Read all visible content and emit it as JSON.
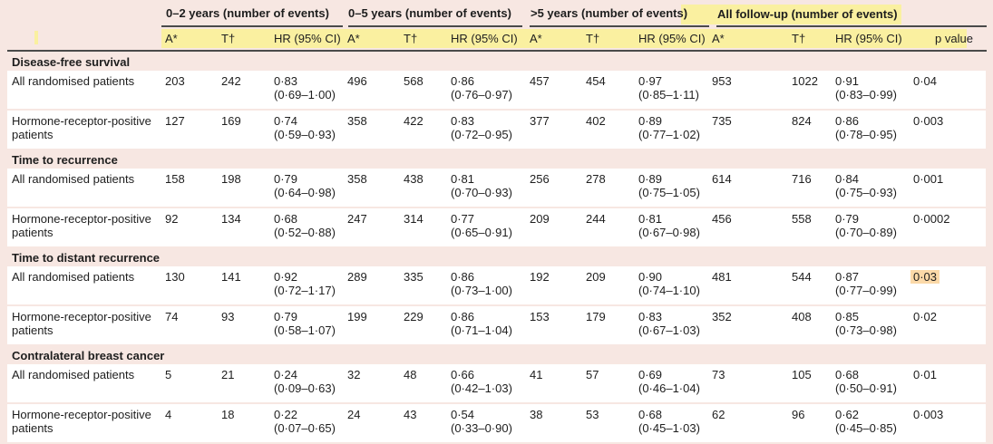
{
  "colors": {
    "page_bg": "#f7e7e2",
    "row_bg": "#ffffff",
    "highlight_yellow": "#faf0a0",
    "highlight_peach": "#fbd9a8",
    "rule": "#4a4a4a",
    "text": "#1e1e1e"
  },
  "table": {
    "header": {
      "groups": [
        {
          "label": "0–2 years (number of events)",
          "highlighted": false
        },
        {
          "label": "0–5 years (number of events)",
          "highlighted": false
        },
        {
          "label": ">5 years (number of events)",
          "highlighted": "trailing-block"
        },
        {
          "label": "All follow-up (number of events)",
          "highlighted": true
        }
      ],
      "sub": {
        "a": "A*",
        "t": "T†",
        "hr": "HR (95% CI)"
      },
      "p_label": "p value"
    },
    "sections": [
      {
        "title": "Disease-free survival",
        "rows": [
          {
            "label": "All randomised patients",
            "groups": [
              {
                "a": "203",
                "t": "242",
                "hr": "0·83",
                "ci": "(0·69–1·00)"
              },
              {
                "a": "496",
                "t": "568",
                "hr": "0·86",
                "ci": "(0·76–0·97)"
              },
              {
                "a": "457",
                "t": "454",
                "hr": "0·97",
                "ci": "(0·85–1·11)"
              },
              {
                "a": "953",
                "t": "1022",
                "hr": "0·91",
                "ci": "(0·83–0·99)"
              }
            ],
            "p": "0·04",
            "p_highlight": false
          },
          {
            "label": "Hormone-receptor-positive patients",
            "groups": [
              {
                "a": "127",
                "t": "169",
                "hr": "0·74",
                "ci": "(0·59–0·93)"
              },
              {
                "a": "358",
                "t": "422",
                "hr": "0·83",
                "ci": "(0·72–0·95)"
              },
              {
                "a": "377",
                "t": "402",
                "hr": "0·89",
                "ci": "(0·77–1·02)"
              },
              {
                "a": "735",
                "t": "824",
                "hr": "0·86",
                "ci": "(0·78–0·95)"
              }
            ],
            "p": "0·003",
            "p_highlight": false
          }
        ]
      },
      {
        "title": "Time to recurrence",
        "rows": [
          {
            "label": "All randomised patients",
            "groups": [
              {
                "a": "158",
                "t": "198",
                "hr": "0·79",
                "ci": "(0·64–0·98)"
              },
              {
                "a": "358",
                "t": "438",
                "hr": "0·81",
                "ci": "(0·70–0·93)"
              },
              {
                "a": "256",
                "t": "278",
                "hr": "0·89",
                "ci": "(0·75–1·05)"
              },
              {
                "a": "614",
                "t": "716",
                "hr": "0·84",
                "ci": "(0·75–0·93)"
              }
            ],
            "p": "0·001",
            "p_highlight": false
          },
          {
            "label": "Hormone-receptor-positive patients",
            "groups": [
              {
                "a": "92",
                "t": "134",
                "hr": "0·68",
                "ci": "(0·52–0·88)"
              },
              {
                "a": "247",
                "t": "314",
                "hr": "0·77",
                "ci": "(0·65–0·91)"
              },
              {
                "a": "209",
                "t": "244",
                "hr": "0·81",
                "ci": "(0·67–0·98)"
              },
              {
                "a": "456",
                "t": "558",
                "hr": "0·79",
                "ci": "(0·70–0·89)"
              }
            ],
            "p": "0·0002",
            "p_highlight": false
          }
        ]
      },
      {
        "title": "Time to distant recurrence",
        "rows": [
          {
            "label": "All randomised patients",
            "groups": [
              {
                "a": "130",
                "t": "141",
                "hr": "0·92",
                "ci": "(0·72–1·17)"
              },
              {
                "a": "289",
                "t": "335",
                "hr": "0·86",
                "ci": "(0·73–1·00)"
              },
              {
                "a": "192",
                "t": "209",
                "hr": "0·90",
                "ci": "(0·74–1·10)"
              },
              {
                "a": "481",
                "t": "544",
                "hr": "0·87",
                "ci": "(0·77–0·99)"
              }
            ],
            "p": "0·03",
            "p_highlight": true
          },
          {
            "label": "Hormone-receptor-positive patients",
            "groups": [
              {
                "a": "74",
                "t": "93",
                "hr": "0·79",
                "ci": "(0·58–1·07)"
              },
              {
                "a": "199",
                "t": "229",
                "hr": "0·86",
                "ci": "(0·71–1·04)"
              },
              {
                "a": "153",
                "t": "179",
                "hr": "0·83",
                "ci": "(0·67–1·03)"
              },
              {
                "a": "352",
                "t": "408",
                "hr": "0·85",
                "ci": "(0·73–0·98)"
              }
            ],
            "p": "0·02",
            "p_highlight": false
          }
        ]
      },
      {
        "title": "Contralateral breast cancer",
        "rows": [
          {
            "label": "All randomised patients",
            "groups": [
              {
                "a": "5",
                "t": "21",
                "hr": "0·24",
                "ci": "(0·09–0·63)"
              },
              {
                "a": "32",
                "t": "48",
                "hr": "0·66",
                "ci": "(0·42–1·03)"
              },
              {
                "a": "41",
                "t": "57",
                "hr": "0·69",
                "ci": "(0·46–1·04)"
              },
              {
                "a": "73",
                "t": "105",
                "hr": "0·68",
                "ci": "(0·50–0·91)"
              }
            ],
            "p": "0·01",
            "p_highlight": false
          },
          {
            "label": "Hormone-receptor-positive patients",
            "groups": [
              {
                "a": "4",
                "t": "18",
                "hr": "0·22",
                "ci": "(0·07–0·65)"
              },
              {
                "a": "24",
                "t": "43",
                "hr": "0·54",
                "ci": "(0·33–0·90)"
              },
              {
                "a": "38",
                "t": "53",
                "hr": "0·68",
                "ci": "(0·45–1·03)"
              },
              {
                "a": "62",
                "t": "96",
                "hr": "0·62",
                "ci": "(0·45–0·85)"
              }
            ],
            "p": "0·003",
            "p_highlight": false
          }
        ]
      }
    ]
  }
}
